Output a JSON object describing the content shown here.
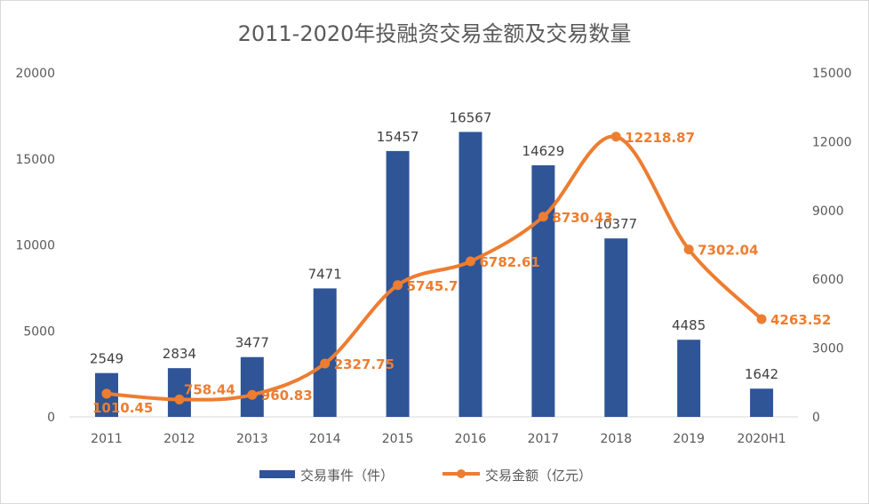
{
  "chart_data": {
    "type": "bar+line",
    "title": "2011-2020年投融资交易金额及交易数量",
    "categories": [
      "2011",
      "2012",
      "2013",
      "2014",
      "2015",
      "2016",
      "2017",
      "2018",
      "2019",
      "2020H1"
    ],
    "series": [
      {
        "name": "交易事件（件）",
        "type": "bar",
        "axis": "left",
        "color": "#2f5597",
        "values": [
          2549,
          2834,
          3477,
          7471,
          15457,
          16567,
          14629,
          10377,
          4485,
          1642
        ],
        "labels": [
          "2549",
          "2834",
          "3477",
          "7471",
          "15457",
          "16567",
          "14629",
          "10377",
          "4485",
          "1642"
        ]
      },
      {
        "name": "交易金额（亿元）",
        "type": "line",
        "axis": "right",
        "color": "#ed7d31",
        "smooth": true,
        "values": [
          1010.45,
          758.44,
          960.83,
          2327.75,
          5745.7,
          6782.61,
          8730.43,
          12218.87,
          7302.04,
          4263.52
        ],
        "labels": [
          "1010.45",
          "758.44",
          "960.83",
          "2327.75",
          "5745.7",
          "6782.61",
          "8730.43",
          "12218.87",
          "7302.04",
          "4263.52"
        ]
      }
    ],
    "ylim_left": [
      0,
      20000
    ],
    "yticks_left": [
      "0",
      "5000",
      "10000",
      "15000",
      "20000"
    ],
    "ylim_right": [
      0,
      15000
    ],
    "yticks_right": [
      "0",
      "3000",
      "6000",
      "9000",
      "12000",
      "15000"
    ],
    "grid": false,
    "legend": "bottom"
  }
}
